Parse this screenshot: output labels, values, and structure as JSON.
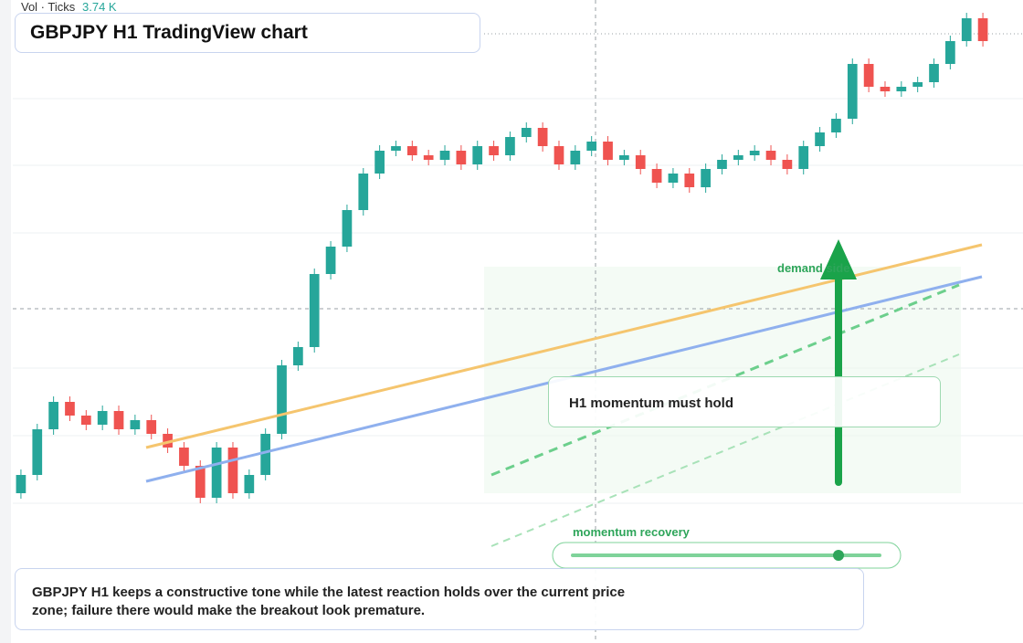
{
  "chart_data": {
    "type": "candlestick",
    "title": "GBPJPY H1 TradingView chart",
    "volume_label": "Vol · Ticks",
    "volume_value": "3.74 K",
    "annotations": {
      "demand": "demand side",
      "hold": "H1 momentum must hold",
      "recovery": "momentum recovery",
      "summary": "GBPJPY H1 keeps a constructive tone while the latest reaction holds over the current price zone; failure there would make the breakout look premature."
    },
    "up_color": "#26a69a",
    "down_color": "#ef5350",
    "ylim": [
      0,
      704
    ],
    "open": [
      164,
      184,
      234,
      264,
      249,
      239,
      254,
      234,
      244,
      229,
      214,
      194,
      159,
      214,
      164,
      184,
      229,
      304,
      324,
      404,
      434,
      474,
      514,
      539,
      544,
      534,
      529,
      539,
      524,
      544,
      534,
      554,
      564,
      544,
      524,
      539,
      549,
      529,
      534,
      519,
      504,
      514,
      499,
      519,
      529,
      534,
      539,
      529,
      519,
      544,
      559,
      574,
      634,
      609,
      604,
      609,
      614,
      634,
      659,
      684
    ],
    "high": [
      190,
      240,
      270,
      270,
      255,
      260,
      260,
      250,
      250,
      235,
      220,
      200,
      220,
      220,
      190,
      235,
      310,
      330,
      410,
      440,
      480,
      520,
      545,
      550,
      550,
      540,
      545,
      545,
      550,
      550,
      560,
      570,
      570,
      550,
      545,
      555,
      555,
      540,
      540,
      525,
      520,
      520,
      525,
      535,
      540,
      545,
      545,
      535,
      550,
      565,
      580,
      640,
      640,
      615,
      615,
      620,
      640,
      665,
      690,
      690
    ],
    "low": [
      158,
      178,
      228,
      243,
      233,
      233,
      228,
      228,
      223,
      208,
      188,
      153,
      153,
      158,
      158,
      178,
      223,
      298,
      318,
      398,
      428,
      468,
      508,
      533,
      528,
      523,
      523,
      518,
      518,
      528,
      528,
      548,
      538,
      518,
      518,
      533,
      523,
      523,
      513,
      498,
      498,
      493,
      493,
      513,
      523,
      528,
      523,
      513,
      513,
      538,
      553,
      568,
      603,
      598,
      598,
      603,
      608,
      628,
      653,
      653
    ],
    "close": [
      184,
      234,
      264,
      249,
      239,
      254,
      234,
      244,
      229,
      214,
      194,
      159,
      214,
      164,
      184,
      229,
      304,
      324,
      404,
      434,
      474,
      514,
      539,
      544,
      534,
      529,
      539,
      524,
      544,
      534,
      554,
      564,
      544,
      524,
      539,
      549,
      529,
      534,
      519,
      504,
      514,
      499,
      519,
      529,
      534,
      539,
      529,
      519,
      544,
      559,
      574,
      634,
      609,
      604,
      609,
      614,
      634,
      659,
      684,
      659
    ]
  }
}
